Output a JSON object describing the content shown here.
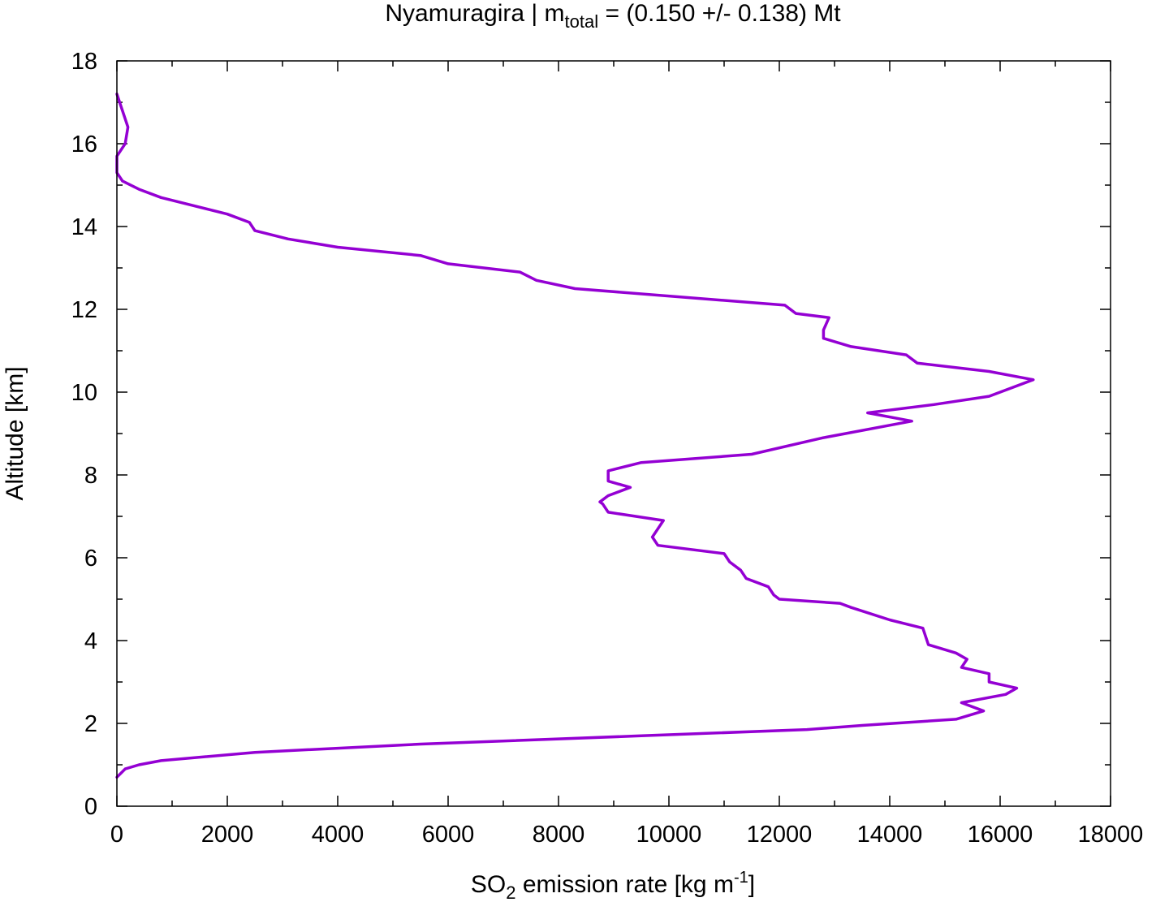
{
  "chart_data": {
    "type": "line",
    "title": {
      "prefix": "Nyamuragira | m",
      "subscript": "total",
      "suffix": " = (0.150 +/- 0.138) Mt"
    },
    "xlabel": {
      "prefix": "SO",
      "subscript": "2",
      "middle": " emission rate [kg m",
      "superscript": "-1",
      "suffix": "]"
    },
    "ylabel": "Altitude [km]",
    "xlim": [
      0,
      18000
    ],
    "ylim": [
      0,
      18
    ],
    "x_ticks": [
      "0",
      "2000",
      "4000",
      "6000",
      "8000",
      "10000",
      "12000",
      "14000",
      "16000",
      "18000"
    ],
    "y_ticks": [
      "0",
      "2",
      "4",
      "6",
      "8",
      "10",
      "12",
      "14",
      "16",
      "18"
    ],
    "grid": false,
    "legend": "none",
    "series": [
      {
        "color": "#9400d3",
        "points": [
          [
            0,
            0.7
          ],
          [
            150,
            0.9
          ],
          [
            400,
            1.0
          ],
          [
            800,
            1.1
          ],
          [
            2500,
            1.3
          ],
          [
            5500,
            1.5
          ],
          [
            9500,
            1.7
          ],
          [
            12500,
            1.85
          ],
          [
            13500,
            1.95
          ],
          [
            15200,
            2.1
          ],
          [
            15700,
            2.3
          ],
          [
            15300,
            2.5
          ],
          [
            16100,
            2.7
          ],
          [
            16300,
            2.85
          ],
          [
            15800,
            3.0
          ],
          [
            15800,
            3.2
          ],
          [
            15300,
            3.35
          ],
          [
            15400,
            3.55
          ],
          [
            15200,
            3.7
          ],
          [
            14700,
            3.9
          ],
          [
            14600,
            4.3
          ],
          [
            14000,
            4.5
          ],
          [
            13300,
            4.8
          ],
          [
            13100,
            4.9
          ],
          [
            12000,
            5.0
          ],
          [
            11900,
            5.1
          ],
          [
            11800,
            5.3
          ],
          [
            11400,
            5.5
          ],
          [
            11300,
            5.7
          ],
          [
            11100,
            5.9
          ],
          [
            11000,
            6.1
          ],
          [
            9800,
            6.3
          ],
          [
            9700,
            6.5
          ],
          [
            9800,
            6.7
          ],
          [
            9900,
            6.9
          ],
          [
            8900,
            7.1
          ],
          [
            8800,
            7.3
          ],
          [
            8750,
            7.35
          ],
          [
            8900,
            7.5
          ],
          [
            9300,
            7.7
          ],
          [
            8900,
            7.85
          ],
          [
            8900,
            8.1
          ],
          [
            9500,
            8.3
          ],
          [
            11500,
            8.5
          ],
          [
            12800,
            8.9
          ],
          [
            14400,
            9.3
          ],
          [
            13600,
            9.5
          ],
          [
            14800,
            9.7
          ],
          [
            15800,
            9.9
          ],
          [
            16600,
            10.3
          ],
          [
            15800,
            10.5
          ],
          [
            14500,
            10.7
          ],
          [
            14300,
            10.9
          ],
          [
            13300,
            11.1
          ],
          [
            12800,
            11.3
          ],
          [
            12800,
            11.5
          ],
          [
            12900,
            11.8
          ],
          [
            12300,
            11.9
          ],
          [
            12100,
            12.1
          ],
          [
            8300,
            12.5
          ],
          [
            7600,
            12.7
          ],
          [
            7300,
            12.9
          ],
          [
            6000,
            13.1
          ],
          [
            5500,
            13.3
          ],
          [
            4000,
            13.5
          ],
          [
            3100,
            13.7
          ],
          [
            2500,
            13.9
          ],
          [
            2400,
            14.1
          ],
          [
            2000,
            14.3
          ],
          [
            800,
            14.7
          ],
          [
            400,
            14.9
          ],
          [
            100,
            15.1
          ],
          [
            0,
            15.3
          ],
          [
            0,
            15.7
          ],
          [
            150,
            16.0
          ],
          [
            200,
            16.4
          ],
          [
            100,
            16.8
          ],
          [
            0,
            17.2
          ]
        ]
      }
    ]
  }
}
